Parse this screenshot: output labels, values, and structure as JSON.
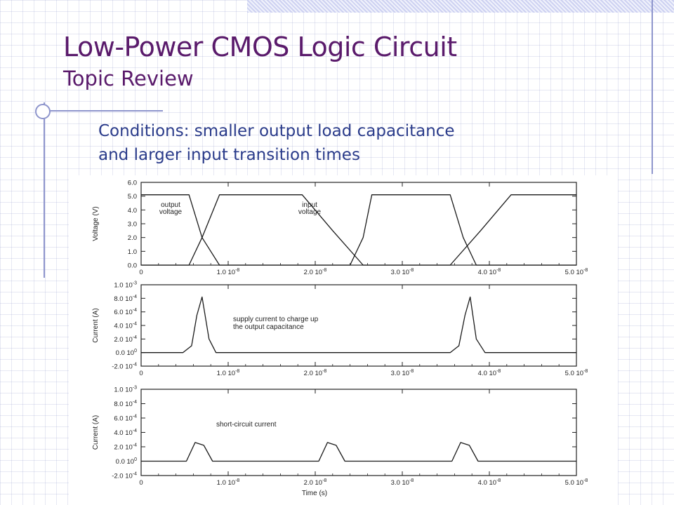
{
  "slide": {
    "title": "Low-Power CMOS Logic Circuit",
    "subtitle": "Topic Review",
    "conditions_line1": "Conditions: smaller output load capacitance",
    "conditions_line2": "and larger input transition times"
  },
  "chart_data": [
    {
      "type": "line",
      "ylabel": "Voltage (V)",
      "ylim": [
        0,
        6
      ],
      "xlim": [
        0,
        5e-08
      ],
      "xticks": [
        "0",
        "1.0 10^-8",
        "2.0 10^-8",
        "3.0 10^-8",
        "4.0 10^-8",
        "5.0 10^-8"
      ],
      "yticks": [
        "0.0",
        "1.0",
        "2.0",
        "3.0",
        "4.0",
        "5.0",
        "6.0"
      ],
      "annotations": [
        "output voltage",
        "input voltage"
      ],
      "series": [
        {
          "x": [
            0,
            5.5e-09,
            7e-09,
            9e-09,
            2.4e-08,
            2.55e-08,
            2.65e-08,
            3.55e-08,
            3.7e-08,
            3.85e-08,
            5e-08
          ],
          "values": [
            5.1,
            5.1,
            2.0,
            0.0,
            0.0,
            2.0,
            5.1,
            5.1,
            2.0,
            0.0,
            0.0
          ]
        },
        {
          "x": [
            0,
            5.5e-09,
            7e-09,
            9e-09,
            1.85e-08,
            2.2e-08,
            2.55e-08,
            2.8e-08,
            3.55e-08,
            3.9e-08,
            4.25e-08,
            5e-08
          ],
          "values": [
            0.0,
            0.0,
            2.0,
            5.1,
            5.1,
            2.5,
            0.0,
            0.0,
            0.0,
            2.5,
            5.1,
            5.1
          ]
        }
      ]
    },
    {
      "type": "line",
      "ylabel": "Current (A)",
      "ylim": [
        -0.0002,
        0.001
      ],
      "xlim": [
        0,
        5e-08
      ],
      "xticks": [
        "0",
        "1.0 10^-8",
        "2.0 10^-8",
        "3.0 10^-8",
        "4.0 10^-8",
        "5.0 10^-8"
      ],
      "yticks": [
        "-2.0 10^-4",
        "0.0 10^0",
        "2.0 10^-4",
        "4.0 10^-4",
        "6.0 10^-4",
        "8.0 10^-4",
        "1.0 10^-3"
      ],
      "annotations": [
        "supply current to charge up",
        "the output capacitance"
      ],
      "series": [
        {
          "x": [
            0,
            4.8e-09,
            5.8e-09,
            6.4e-09,
            7e-09,
            7.8e-09,
            8.6e-09,
            3.55e-08,
            3.65e-08,
            3.72e-08,
            3.78e-08,
            3.85e-08,
            3.95e-08,
            5e-08
          ],
          "values": [
            0,
            0,
            0.0001,
            0.00055,
            0.00082,
            0.0002,
            0,
            0,
            0.0001,
            0.00055,
            0.00082,
            0.0002,
            0,
            0
          ]
        }
      ]
    },
    {
      "type": "line",
      "ylabel": "Current (A)",
      "ylim": [
        -0.0002,
        0.001
      ],
      "xlim": [
        0,
        5e-08
      ],
      "xticks": [
        "0",
        "1.0 10^-8",
        "2.0 10^-8",
        "3.0 10^-8",
        "4.0 10^-8",
        "5.0 10^-8"
      ],
      "yticks": [
        "-2.0 10^-4",
        "0.0 10^0",
        "2.0 10^-4",
        "4.0 10^-4",
        "6.0 10^-4",
        "8.0 10^-4",
        "1.0 10^-3"
      ],
      "xlabel": "Time (s)",
      "annotations": [
        "short-circuit current"
      ],
      "series": [
        {
          "x": [
            0,
            5.2e-09,
            6.2e-09,
            7.2e-09,
            8.2e-09,
            2.04e-08,
            2.14e-08,
            2.24e-08,
            2.34e-08,
            3.57e-08,
            3.67e-08,
            3.77e-08,
            3.87e-08,
            5e-08
          ],
          "values": [
            0,
            0,
            0.00026,
            0.00022,
            0,
            0,
            0.00026,
            0.00022,
            0,
            0,
            0.00026,
            0.00022,
            0,
            0
          ]
        }
      ]
    }
  ]
}
